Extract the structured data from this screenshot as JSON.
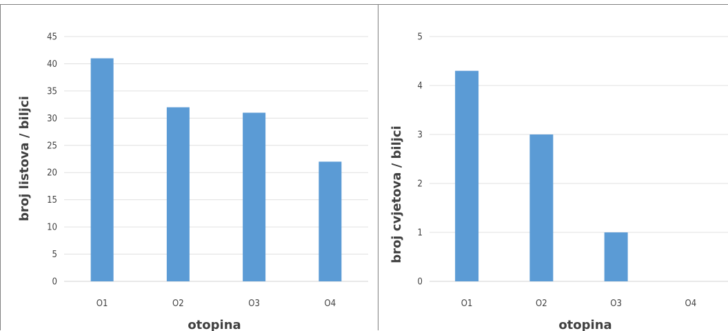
{
  "chart_data": [
    {
      "type": "bar",
      "categories": [
        "O1",
        "O2",
        "O3",
        "O4"
      ],
      "values": [
        41,
        32,
        31,
        22
      ],
      "xlabel": "otopina",
      "ylabel": "broj listova / biljci",
      "ylim": [
        0,
        45
      ],
      "yticks": [
        0,
        5,
        10,
        15,
        20,
        25,
        30,
        35,
        40,
        45
      ],
      "grid": true,
      "bar_color": "#5b9bd5"
    },
    {
      "type": "bar",
      "categories": [
        "O1",
        "O2",
        "O3",
        "O4"
      ],
      "values": [
        4.3,
        3,
        1,
        0
      ],
      "xlabel": "otopina",
      "ylabel": "broj cvjetova / biljci",
      "ylim": [
        0,
        5
      ],
      "yticks": [
        0,
        1,
        2,
        3,
        4,
        5
      ],
      "grid": true,
      "bar_color": "#5b9bd5"
    }
  ]
}
